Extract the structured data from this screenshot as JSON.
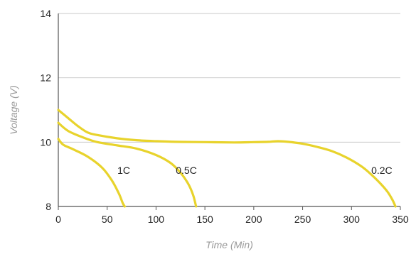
{
  "chart_data": {
    "type": "line",
    "title": "",
    "xlabel": "Time (Min)",
    "ylabel": "Voltage (V)",
    "xlim": [
      0,
      350
    ],
    "ylim": [
      8,
      14
    ],
    "x_ticks": [
      0,
      50,
      100,
      150,
      200,
      250,
      300,
      350
    ],
    "y_ticks": [
      8,
      10,
      12,
      14
    ],
    "grid": "horizontal",
    "line_color": "#e8d32c",
    "series": [
      {
        "name": "1C",
        "x": [
          0,
          5,
          15,
          30,
          45,
          55,
          62,
          66,
          68
        ],
        "y": [
          10.1,
          9.92,
          9.78,
          9.55,
          9.2,
          8.8,
          8.4,
          8.1,
          8.0
        ]
      },
      {
        "name": "0.5C",
        "x": [
          0,
          10,
          25,
          40,
          60,
          80,
          100,
          115,
          125,
          133,
          138,
          141
        ],
        "y": [
          10.6,
          10.35,
          10.15,
          10.0,
          9.9,
          9.8,
          9.6,
          9.35,
          9.05,
          8.7,
          8.35,
          8.0
        ]
      },
      {
        "name": "0.2C",
        "x": [
          0,
          10,
          20,
          30,
          40,
          60,
          80,
          100,
          120,
          150,
          180,
          200,
          215,
          225,
          235,
          250,
          265,
          280,
          295,
          310,
          320,
          330,
          337,
          342,
          345
        ],
        "y": [
          11.0,
          10.75,
          10.5,
          10.3,
          10.22,
          10.12,
          10.06,
          10.03,
          10.01,
          10.0,
          9.99,
          10.0,
          10.01,
          10.03,
          10.01,
          9.95,
          9.85,
          9.72,
          9.52,
          9.25,
          9.0,
          8.7,
          8.45,
          8.2,
          8.0
        ]
      }
    ],
    "series_labels": [
      {
        "text": "1C",
        "x": 67,
        "y": 9.12
      },
      {
        "text": "0.5C",
        "x": 131,
        "y": 9.12
      },
      {
        "text": "0.2C",
        "x": 331,
        "y": 9.12
      }
    ]
  }
}
